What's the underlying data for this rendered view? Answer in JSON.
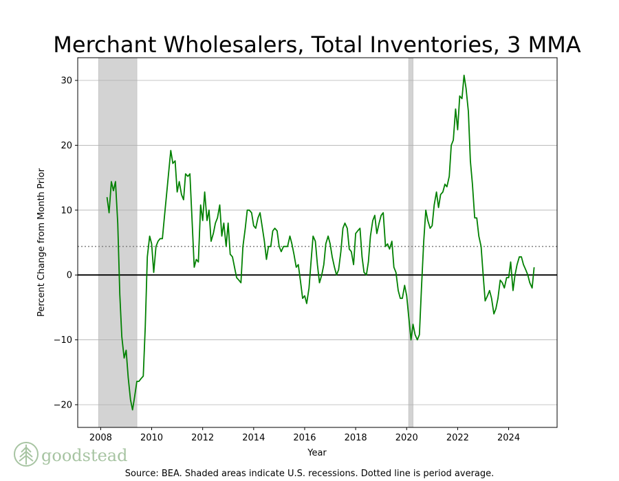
{
  "chart_data": {
    "type": "line",
    "title": "Merchant Wholesalers, Total Inventories, 3 MMA",
    "xlabel": "Year",
    "ylabel": "Percent Change from Month Prior",
    "xlim": [
      2007.1,
      2025.9
    ],
    "ylim": [
      -23.5,
      33.5
    ],
    "x_ticks": [
      2008,
      2010,
      2012,
      2014,
      2016,
      2018,
      2020,
      2022,
      2024
    ],
    "y_ticks": [
      -20,
      -10,
      0,
      10,
      20,
      30
    ],
    "y_tick_labels": [
      "−20",
      "−10",
      "0",
      "10",
      "20",
      "30"
    ],
    "x_tick_labels": [
      "2008",
      "2010",
      "2012",
      "2014",
      "2016",
      "2018",
      "2020",
      "2022",
      "2024"
    ],
    "grid": "horizontal",
    "average": 4.4,
    "zero_line": 0,
    "recessions": [
      {
        "start": 2007.92,
        "end": 2009.42
      },
      {
        "start": 2020.08,
        "end": 2020.25
      }
    ],
    "series": [
      {
        "color": "#008000",
        "x": [
          2008.25,
          2008.33,
          2008.42,
          2008.5,
          2008.58,
          2008.67,
          2008.75,
          2008.83,
          2008.92,
          2009.0,
          2009.08,
          2009.17,
          2009.25,
          2009.33,
          2009.42,
          2009.5,
          2009.58,
          2009.67,
          2009.75,
          2009.83,
          2009.92,
          2010.0,
          2010.08,
          2010.17,
          2010.25,
          2010.33,
          2010.42,
          2010.5,
          2010.58,
          2010.67,
          2010.75,
          2010.83,
          2010.92,
          2011.0,
          2011.08,
          2011.17,
          2011.25,
          2011.33,
          2011.42,
          2011.5,
          2011.58,
          2011.67,
          2011.75,
          2011.83,
          2011.92,
          2012.0,
          2012.08,
          2012.17,
          2012.25,
          2012.33,
          2012.42,
          2012.5,
          2012.58,
          2012.67,
          2012.75,
          2012.83,
          2012.92,
          2013.0,
          2013.08,
          2013.17,
          2013.25,
          2013.33,
          2013.42,
          2013.5,
          2013.58,
          2013.67,
          2013.75,
          2013.83,
          2013.92,
          2014.0,
          2014.08,
          2014.17,
          2014.25,
          2014.33,
          2014.42,
          2014.5,
          2014.58,
          2014.67,
          2014.75,
          2014.83,
          2014.92,
          2015.0,
          2015.08,
          2015.17,
          2015.25,
          2015.33,
          2015.42,
          2015.5,
          2015.58,
          2015.67,
          2015.75,
          2015.83,
          2015.92,
          2016.0,
          2016.08,
          2016.17,
          2016.25,
          2016.33,
          2016.42,
          2016.5,
          2016.58,
          2016.67,
          2016.75,
          2016.83,
          2016.92,
          2017.0,
          2017.08,
          2017.17,
          2017.25,
          2017.33,
          2017.42,
          2017.5,
          2017.58,
          2017.67,
          2017.75,
          2017.83,
          2017.92,
          2018.0,
          2018.08,
          2018.17,
          2018.25,
          2018.33,
          2018.42,
          2018.5,
          2018.58,
          2018.67,
          2018.75,
          2018.83,
          2018.92,
          2019.0,
          2019.08,
          2019.17,
          2019.25,
          2019.33,
          2019.42,
          2019.5,
          2019.58,
          2019.67,
          2019.75,
          2019.83,
          2019.92,
          2020.0,
          2020.08,
          2020.17,
          2020.25,
          2020.33,
          2020.42,
          2020.5,
          2020.58,
          2020.67,
          2020.75,
          2020.83,
          2020.92,
          2021.0,
          2021.08,
          2021.17,
          2021.25,
          2021.33,
          2021.42,
          2021.5,
          2021.58,
          2021.67,
          2021.75,
          2021.83,
          2021.92,
          2022.0,
          2022.08,
          2022.17,
          2022.25,
          2022.33,
          2022.42,
          2022.5,
          2022.58,
          2022.67,
          2022.75,
          2022.83,
          2022.92,
          2023.0,
          2023.08,
          2023.17,
          2023.25,
          2023.33,
          2023.42,
          2023.5,
          2023.58,
          2023.67,
          2023.75,
          2023.83,
          2023.92,
          2024.0,
          2024.08,
          2024.17,
          2024.25,
          2024.33,
          2024.42,
          2024.5,
          2024.58,
          2024.67,
          2024.75,
          2024.83,
          2024.92,
          2025.0
        ],
        "y": [
          12.0,
          9.6,
          14.4,
          13.0,
          14.4,
          8.0,
          -3.0,
          -9.5,
          -12.8,
          -11.6,
          -15.8,
          -19.2,
          -20.8,
          -18.8,
          -16.4,
          -16.4,
          -16.0,
          -15.6,
          -8.0,
          2.8,
          6.0,
          4.8,
          0.4,
          4.4,
          5.2,
          5.6,
          5.6,
          9.0,
          12.2,
          16.0,
          19.2,
          17.2,
          17.6,
          12.8,
          14.4,
          12.4,
          11.6,
          15.6,
          15.2,
          15.6,
          8.8,
          1.2,
          2.4,
          2.0,
          10.8,
          8.4,
          12.8,
          8.4,
          10.0,
          5.2,
          6.4,
          8.0,
          8.8,
          10.8,
          6.0,
          8.0,
          4.4,
          8.0,
          3.2,
          2.8,
          1.2,
          -0.4,
          -0.8,
          -1.2,
          4.4,
          7.2,
          10.0,
          10.0,
          9.6,
          7.6,
          7.2,
          8.8,
          9.6,
          7.6,
          5.2,
          2.4,
          4.4,
          4.4,
          6.8,
          7.2,
          6.8,
          4.4,
          3.6,
          4.4,
          4.4,
          4.4,
          6.0,
          4.8,
          3.2,
          1.2,
          1.6,
          -0.8,
          -3.6,
          -3.2,
          -4.4,
          -2.0,
          2.0,
          6.0,
          5.2,
          1.6,
          -1.2,
          0.0,
          1.6,
          4.8,
          6.0,
          4.8,
          2.8,
          1.2,
          0.0,
          0.8,
          3.6,
          7.2,
          8.0,
          7.2,
          4.0,
          3.6,
          1.6,
          6.4,
          6.8,
          7.2,
          2.8,
          0.4,
          0.0,
          2.0,
          6.0,
          8.4,
          9.2,
          6.4,
          8.0,
          9.2,
          9.6,
          4.4,
          4.8,
          4.0,
          5.2,
          1.2,
          0.4,
          -2.4,
          -3.6,
          -3.6,
          -1.6,
          -3.2,
          -6.4,
          -10.0,
          -7.6,
          -9.2,
          -10.0,
          -9.2,
          -2.0,
          5.2,
          10.0,
          8.4,
          7.2,
          7.6,
          10.8,
          12.8,
          10.4,
          12.4,
          12.8,
          14.0,
          13.6,
          15.2,
          20.0,
          20.8,
          25.6,
          22.4,
          27.6,
          27.2,
          30.8,
          28.8,
          25.2,
          17.6,
          14.0,
          8.8,
          8.8,
          6.0,
          4.4,
          0.0,
          -4.0,
          -3.2,
          -2.4,
          -3.6,
          -6.0,
          -5.2,
          -3.6,
          -0.8,
          -1.2,
          -2.0,
          -0.4,
          -0.4,
          2.0,
          -2.4,
          0.0,
          1.6,
          2.8,
          2.8,
          1.6,
          0.8,
          0.0,
          -1.2,
          -2.0,
          1.2
        ]
      }
    ],
    "source": "Source: BEA. Shaded areas indicate U.S. recessions. Dotted line is period average."
  },
  "logo": {
    "text": "goodstead",
    "icon": "tree-icon",
    "color": "#a7c4a2"
  }
}
